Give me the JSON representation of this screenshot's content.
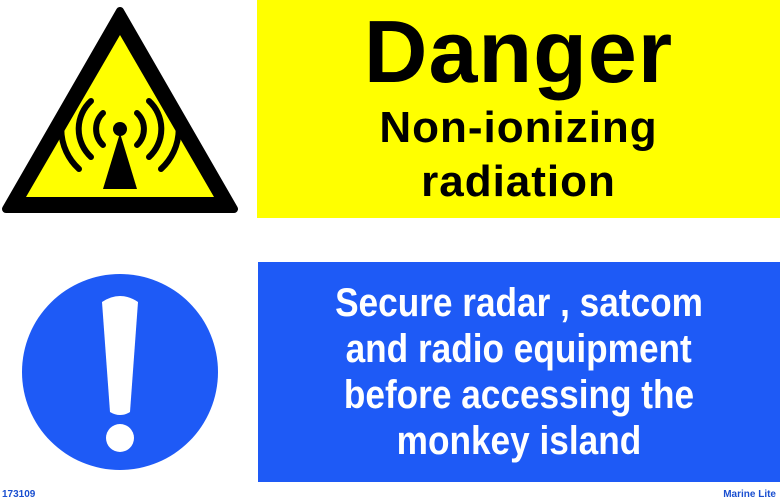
{
  "danger_panel": {
    "title": "Danger",
    "subtitle_line1": "Non-ionizing",
    "subtitle_line2": "radiation",
    "background": "#ffff00"
  },
  "info_panel": {
    "lines": [
      "Secure radar , satcom",
      "and radio equipment",
      "before accessing the",
      "monkey island"
    ],
    "background": "#1e5af6"
  },
  "icons": {
    "warning": "non-ionizing-radiation-warning-icon",
    "mandatory": "exclamation-mandatory-icon"
  },
  "footer": {
    "code": "173109",
    "brand": "Marine Lite"
  }
}
